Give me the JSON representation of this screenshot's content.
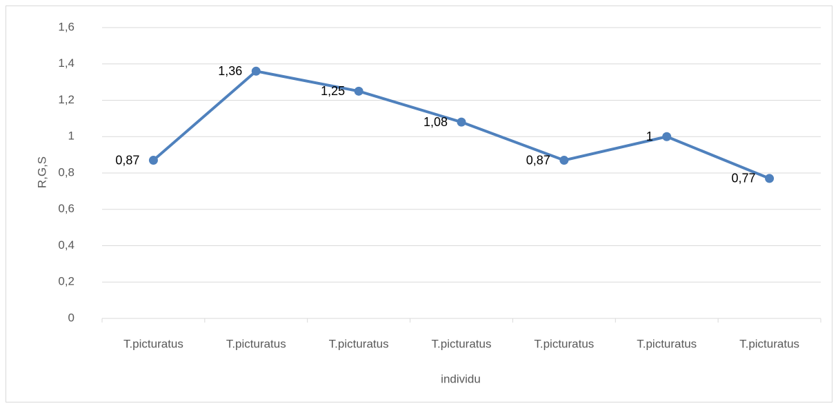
{
  "chart_data": {
    "type": "line",
    "x_label": "individu",
    "y_label": "R,G,S",
    "categories": [
      "T.picturatus",
      "T.picturatus",
      "T.picturatus",
      "T.picturatus",
      "T.picturatus",
      "T.picturatus",
      "T.picturatus"
    ],
    "values": [
      0.87,
      1.36,
      1.25,
      1.08,
      0.87,
      1,
      0.77
    ],
    "value_labels": [
      "0,87",
      "1,36",
      "1,25",
      "1,08",
      "0,87",
      "1",
      "0,77"
    ],
    "color": "#4f81bd",
    "ylim": [
      0,
      1.6
    ],
    "yticks": [
      0,
      {
        "value": 0.2,
        "label": "0,2"
      },
      {
        "value": 0.4,
        "label": "0,4"
      },
      {
        "value": 0.6,
        "label": "0,6"
      },
      {
        "value": 0.8,
        "label": "0,8"
      },
      1,
      {
        "value": 1.2,
        "label": "1,2"
      },
      {
        "value": 1.4,
        "label": "1,4"
      },
      {
        "value": 1.6,
        "label": "1,6"
      }
    ],
    "grid": true
  }
}
